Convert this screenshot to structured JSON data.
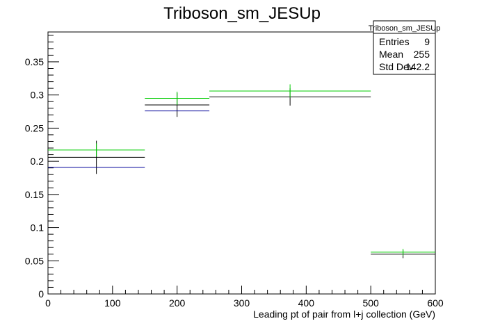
{
  "chart_data": {
    "type": "histogram",
    "title": "Triboson_sm_JESUp",
    "xlabel": "Leading pt of pair from l+j collection (GeV)",
    "ylabel": "",
    "xlim": [
      0,
      600
    ],
    "ylim": [
      0,
      0.395
    ],
    "x_ticks": [
      0,
      100,
      200,
      300,
      400,
      500,
      600
    ],
    "x_tick_labels": [
      "0",
      "100",
      "200",
      "300",
      "400",
      "500",
      "600"
    ],
    "y_ticks": [
      0,
      0.05,
      0.1,
      0.15,
      0.2,
      0.25,
      0.3,
      0.35
    ],
    "y_tick_labels": [
      "0",
      "0.05",
      "0.1",
      "0.15",
      "0.2",
      "0.25",
      "0.3",
      "0.35"
    ],
    "grid": false,
    "bins": [
      {
        "x_low": 0,
        "x_high": 150,
        "x_center": 75
      },
      {
        "x_low": 150,
        "x_high": 250,
        "x_center": 200
      },
      {
        "x_low": 250,
        "x_high": 500,
        "x_center": 375
      },
      {
        "x_low": 500,
        "x_high": 600,
        "x_center": 550
      }
    ],
    "series": [
      {
        "color": "#000000",
        "values": [
          0.206,
          0.285,
          0.297,
          0.06
        ],
        "errors": [
          0.025,
          0.018,
          0.013,
          0.006
        ]
      },
      {
        "color": "#00cc00",
        "values": [
          0.217,
          0.295,
          0.306,
          0.063
        ],
        "errors": [
          0.01,
          0.01,
          0.01,
          0.005
        ]
      },
      {
        "color": "#000099",
        "values": [
          0.191,
          0.276,
          null,
          null
        ],
        "errors": [
          0,
          0,
          0,
          0
        ]
      }
    ],
    "stats_box": {
      "title": "Triboson_sm_JESUp",
      "rows": [
        {
          "label": "Entries",
          "value": "9"
        },
        {
          "label": "Mean",
          "value": "255"
        },
        {
          "label": "Std Dev",
          "value": "142.2"
        }
      ],
      "placement": "top-right"
    }
  }
}
